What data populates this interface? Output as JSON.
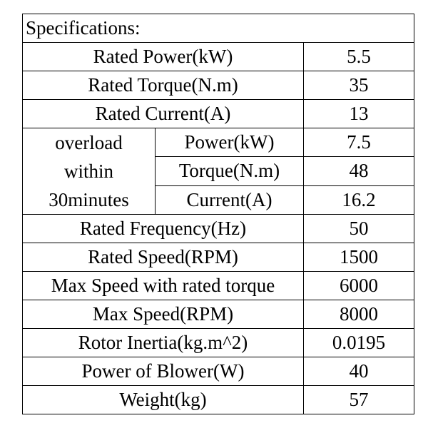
{
  "table": {
    "title": "Specifications:",
    "rated_power": {
      "label": "Rated Power(kW)",
      "value": "5.5"
    },
    "rated_torque": {
      "label": "Rated Torque(N.m)",
      "value": "35"
    },
    "rated_current": {
      "label": "Rated Current(A)",
      "value": "13"
    },
    "overload": {
      "label_lines": [
        "overload",
        "within",
        "30minutes"
      ],
      "power": {
        "label": "Power(kW)",
        "value": "7.5"
      },
      "torque": {
        "label": "Torque(N.m)",
        "value": "48"
      },
      "current": {
        "label": "Current(A)",
        "value": "16.2"
      }
    },
    "rated_frequency": {
      "label": "Rated Frequency(Hz)",
      "value": "50"
    },
    "rated_speed": {
      "label": "Rated Speed(RPM)",
      "value": "1500"
    },
    "max_speed_rated_torque": {
      "label": "Max Speed with rated torque",
      "value": "6000"
    },
    "max_speed": {
      "label": "Max Speed(RPM)",
      "value": "8000"
    },
    "rotor_inertia": {
      "label": "Rotor Inertia(kg.m^2)",
      "value": "0.0195"
    },
    "blower_power": {
      "label": "Power of Blower(W)",
      "value": "40"
    },
    "weight": {
      "label": "Weight(kg)",
      "value": "57"
    }
  }
}
